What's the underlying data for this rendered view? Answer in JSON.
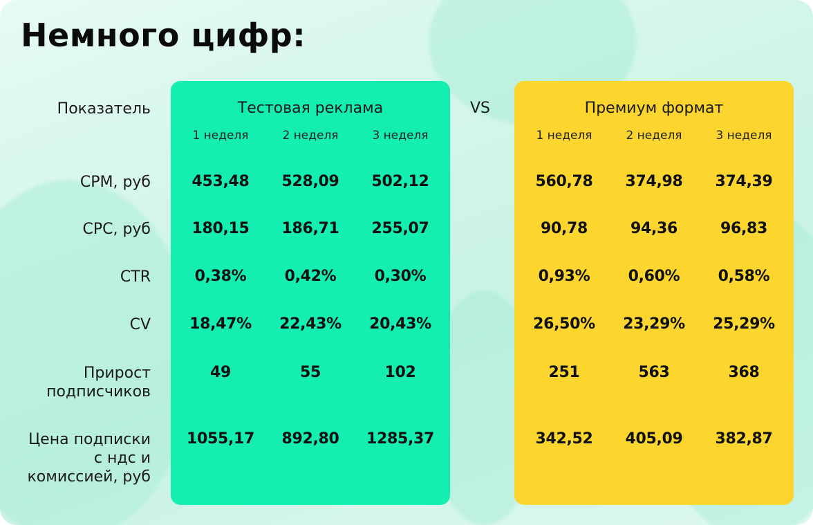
{
  "title": "Немного цифр:",
  "indicator_header": "Показатель",
  "vs_label": "VS",
  "groups": [
    {
      "name": "Тестовая реклама",
      "color": "#14eeb1",
      "weeks": [
        "1 неделя",
        "2 неделя",
        "3 неделя"
      ]
    },
    {
      "name": "Премиум формат",
      "color": "#fcd52f",
      "weeks": [
        "1 неделя",
        "2 неделя",
        "3 неделя"
      ]
    }
  ],
  "rows": [
    {
      "label": "CPM, руб",
      "test": [
        "453,48",
        "528,09",
        "502,12"
      ],
      "premium": [
        "560,78",
        "374,98",
        "374,39"
      ]
    },
    {
      "label": "CPC, руб",
      "test": [
        "180,15",
        "186,71",
        "255,07"
      ],
      "premium": [
        "90,78",
        "94,36",
        "96,83"
      ]
    },
    {
      "label": "CTR",
      "test": [
        "0,38%",
        "0,42%",
        "0,30%"
      ],
      "premium": [
        "0,93%",
        "0,60%",
        "0,58%"
      ]
    },
    {
      "label": "CV",
      "test": [
        "18,47%",
        "22,43%",
        "20,43%"
      ],
      "premium": [
        "26,50%",
        "23,29%",
        "25,29%"
      ]
    },
    {
      "label_lines": [
        "Прирост",
        "подписчиков"
      ],
      "test": [
        "49",
        "55",
        "102"
      ],
      "premium": [
        "251",
        "563",
        "368"
      ]
    },
    {
      "label_lines": [
        "Цена подписки",
        "с ндс и",
        "комиссией, руб"
      ],
      "test": [
        "1055,17",
        "892,80",
        "1285,37"
      ],
      "premium": [
        "342,52",
        "405,09",
        "382,87"
      ]
    }
  ]
}
